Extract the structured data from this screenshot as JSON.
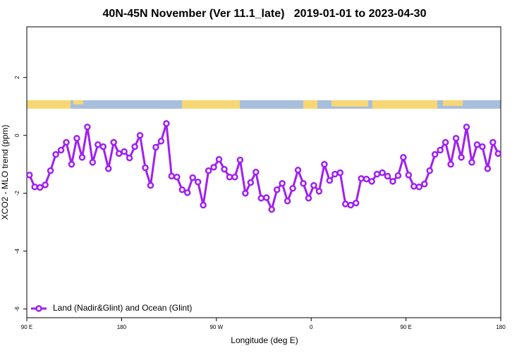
{
  "chart_data": {
    "type": "line",
    "title": "40N-45N November (Ver 11.1_late)   2019-01-01 to 2023-04-30",
    "x_label": "Longitude (deg E)",
    "y_label": "XCO2 - MLO trend (ppm)",
    "xlim": [
      90,
      540
    ],
    "xticks": [
      {
        "value": 90,
        "label": "90 E"
      },
      180,
      {
        "value": 270,
        "label": "90 W"
      },
      {
        "value": 360,
        "label": "0"
      },
      {
        "value": 450,
        "label": "90 E"
      },
      {
        "value": 540,
        "label": "180"
      }
    ],
    "ylim": [
      -6.3,
      3.75
    ],
    "yticks": [
      2,
      0,
      -2,
      -4,
      -6
    ],
    "legend": "lower left",
    "x": [
      92.5,
      97.5,
      102.5,
      107.5,
      112.5,
      117.5,
      122.5,
      127.5,
      132.5,
      137.5,
      142.5,
      147.5,
      152.5,
      157.5,
      162.5,
      167.5,
      172.5,
      177.5,
      182.5,
      187.5,
      192.5,
      197.5,
      202.5,
      207.5,
      212.5,
      217.5,
      222.5,
      227.5,
      232.5,
      237.5,
      242.5,
      247.5,
      252.5,
      257.5,
      262.5,
      267.5,
      272.5,
      277.5,
      282.5,
      287.5,
      292.5,
      297.5,
      302.5,
      307.5,
      312.5,
      317.5,
      322.5,
      327.5,
      332.5,
      337.5,
      342.5,
      347.5,
      352.5,
      357.5,
      362.5,
      367.5,
      372.5,
      377.5,
      382.5,
      387.5,
      392.5,
      397.5,
      402.5,
      407.5,
      412.5,
      417.5,
      422.5,
      427.5,
      432.5,
      437.5,
      442.5,
      447.5,
      452.5,
      457.5,
      462.5,
      467.5,
      472.5,
      477.5,
      482.5,
      487.5,
      492.5,
      497.5,
      502.5,
      507.5,
      512.5,
      517.5,
      522.5,
      527.5,
      532.5,
      537.5
    ],
    "series": [
      {
        "name": "Land (Nadir&Glint) and Ocean (Glint)",
        "color": "#a020f0",
        "values": [
          -1.37,
          -1.78,
          -1.8,
          -1.71,
          -1.22,
          -0.66,
          -0.51,
          -0.24,
          -1.0,
          -0.1,
          -0.76,
          0.29,
          -0.93,
          -0.32,
          -0.39,
          -1.15,
          -0.24,
          -0.63,
          -0.56,
          -0.78,
          -0.39,
          0.0,
          -1.12,
          -1.73,
          -0.41,
          -0.2,
          0.41,
          -1.41,
          -1.44,
          -1.88,
          -1.98,
          -1.46,
          -1.61,
          -2.41,
          -1.22,
          -1.1,
          -0.83,
          -1.17,
          -1.44,
          -1.44,
          -0.85,
          -2.0,
          -1.63,
          -1.27,
          -2.17,
          -2.15,
          -2.56,
          -1.88,
          -1.66,
          -2.27,
          -1.83,
          -1.2,
          -1.66,
          -2.17,
          -1.73,
          -1.93,
          -1.0,
          -1.56,
          -1.34,
          -1.29,
          -2.37,
          -2.41,
          -2.34,
          -1.49,
          -1.51,
          -1.59,
          -1.34,
          -1.29,
          -1.41,
          -1.59,
          -1.39,
          -0.76,
          -1.37,
          -1.76,
          -1.78,
          -1.68,
          -1.22,
          -0.66,
          -0.51,
          -0.24,
          -1.0,
          -0.1,
          -0.76,
          0.29,
          -0.93,
          -0.32,
          -0.39,
          -1.15,
          -0.24,
          -0.63
        ]
      }
    ]
  }
}
